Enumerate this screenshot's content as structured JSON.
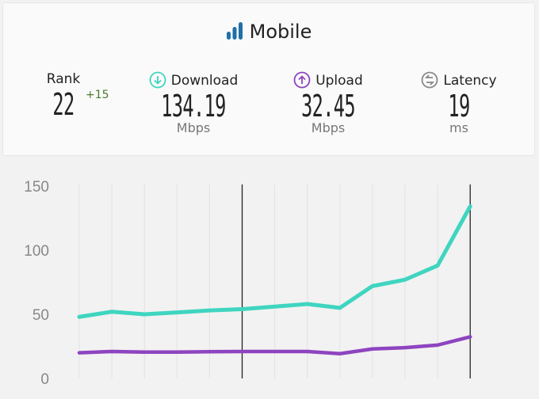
{
  "header": {
    "title": "Mobile",
    "icon": "signal-bars-icon",
    "icon_color": "#1f6fa8"
  },
  "stats": {
    "rank": {
      "label": "Rank",
      "value": "22",
      "change": "+15"
    },
    "download": {
      "label": "Download",
      "value": "134.19",
      "unit": "Mbps",
      "icon": "arrow-down-circle-icon",
      "color": "#3fd5c0"
    },
    "upload": {
      "label": "Upload",
      "value": "32.45",
      "unit": "Mbps",
      "icon": "arrow-up-circle-icon",
      "color": "#8e44c0"
    },
    "latency": {
      "label": "Latency",
      "value": "19",
      "unit": "ms",
      "icon": "swap-circle-icon",
      "color": "#888888"
    }
  },
  "chart_data": {
    "type": "line",
    "ylim": [
      0,
      150
    ],
    "yticks": [
      "0",
      "50",
      "100",
      "150"
    ],
    "grid": "vertical",
    "markers_at_index": [
      5,
      12
    ],
    "series": [
      {
        "values": [
          48,
          52,
          50,
          51.5,
          53,
          54,
          56,
          58,
          55,
          72,
          77,
          88,
          134.19
        ],
        "color": "#3fd5c0"
      },
      {
        "values": [
          20,
          21,
          20.5,
          20.5,
          20.8,
          21,
          21,
          21,
          19.3,
          23,
          24,
          26,
          32.45
        ],
        "color": "#8e44c0"
      }
    ]
  }
}
